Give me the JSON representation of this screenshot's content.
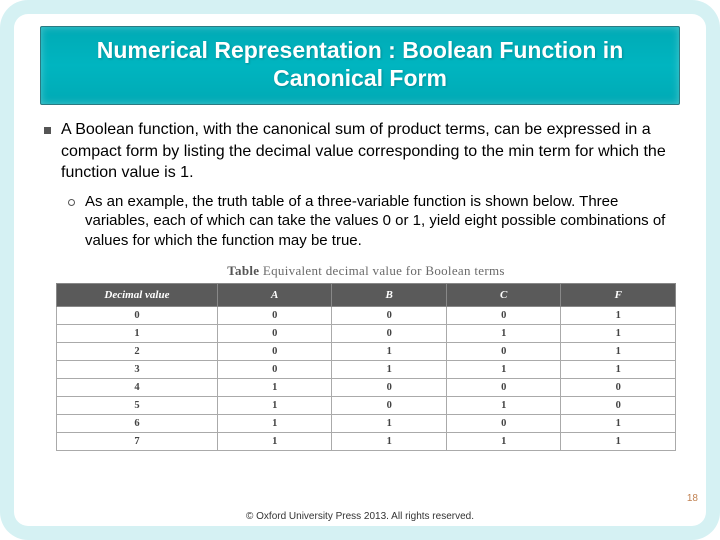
{
  "title": "Numerical Representation : Boolean Function in Canonical Form",
  "bullets": {
    "l1": "A Boolean function, with the canonical sum of product terms, can be expressed in a compact form by listing the decimal value corresponding to the min term for which the function value is 1.",
    "l2": "As an example, the truth table of a three-variable function is shown below. Three variables, each of which can take the values 0 or 1, yield eight possible combinations of values for which the function may be true."
  },
  "table": {
    "caption_bold": "Table",
    "caption_rest": " Equivalent decimal value for Boolean terms",
    "columns": [
      "Decimal value",
      "A",
      "B",
      "C",
      "F"
    ],
    "rows": [
      [
        "0",
        "0",
        "0",
        "0",
        "1"
      ],
      [
        "1",
        "0",
        "0",
        "1",
        "1"
      ],
      [
        "2",
        "0",
        "1",
        "0",
        "1"
      ],
      [
        "3",
        "0",
        "1",
        "1",
        "1"
      ],
      [
        "4",
        "1",
        "0",
        "0",
        "0"
      ],
      [
        "5",
        "1",
        "0",
        "1",
        "0"
      ],
      [
        "6",
        "1",
        "1",
        "0",
        "1"
      ],
      [
        "7",
        "1",
        "1",
        "1",
        "1"
      ]
    ],
    "header_bg": "#5a5a5a",
    "header_fg": "#ffffff",
    "border_color": "#aaaaaa",
    "cell_fg": "#444444"
  },
  "page_number": "18",
  "copyright": "© Oxford University Press 2013. All rights reserved.",
  "colors": {
    "frame_border": "#d5f1f3",
    "banner_bg": "#00aab5",
    "banner_fg": "#ffffff",
    "text": "#000000",
    "pagenum": "#c08050"
  }
}
